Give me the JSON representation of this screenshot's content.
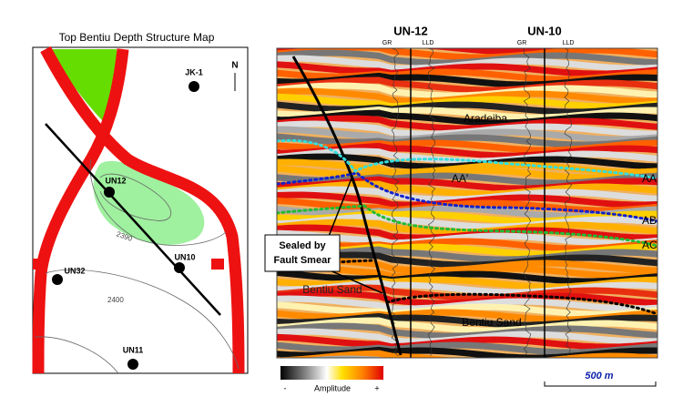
{
  "map": {
    "title": "Top Bentiu Depth Structure Map",
    "north": "N",
    "wells": [
      "JK-1",
      "UN12",
      "UN10",
      "UN32",
      "UN11"
    ],
    "contours": [
      "2390",
      "2400"
    ]
  },
  "section": {
    "wells": [
      {
        "name": "UN-12",
        "logs": [
          "GR",
          "LLD"
        ]
      },
      {
        "name": "UN-10",
        "logs": [
          "GR",
          "LLD"
        ]
      }
    ],
    "labels": [
      "Aradeiba",
      "AA'",
      "Bentiu Sand",
      "Bentiu Sand"
    ],
    "horizons": [
      "AA",
      "AB",
      "AC"
    ],
    "callout": [
      "Sealed by",
      "Fault Smear"
    ],
    "colorbar": {
      "min": "-",
      "title": "Amplitude",
      "max": "+"
    },
    "scale": "500 m"
  }
}
